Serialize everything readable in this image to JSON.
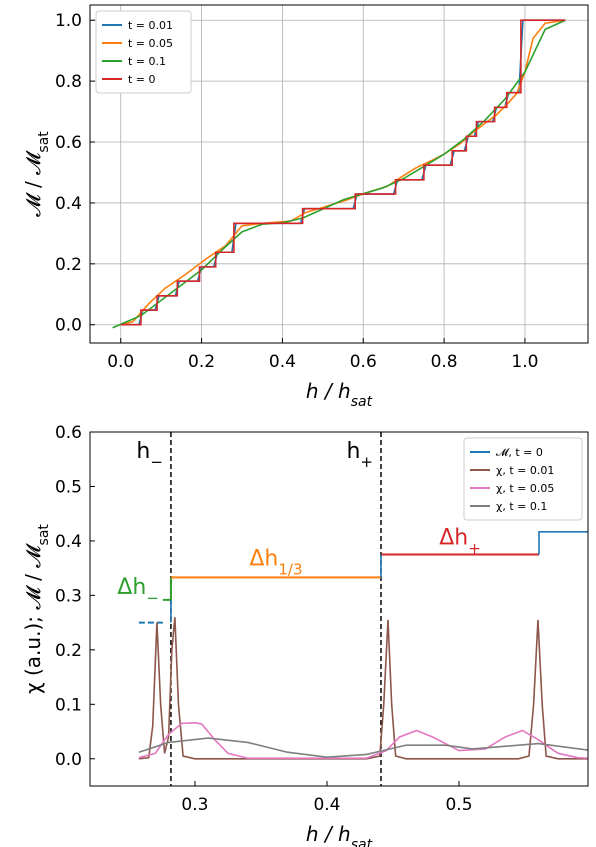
{
  "chart_data": [
    {
      "type": "line",
      "xlabel": {
        "text": "h / h",
        "sub": "sat"
      },
      "ylabel": {
        "text": "𝓜 / 𝓜",
        "sub": "sat"
      },
      "xlim": [
        -0.076,
        1.156
      ],
      "ylim": [
        -0.06,
        1.05
      ],
      "xticks": [
        {
          "value": 0,
          "label": "0.0"
        },
        0.2,
        0.4,
        0.6,
        0.8,
        {
          "value": 1,
          "label": "1.0"
        }
      ],
      "yticks": [
        {
          "value": 0,
          "label": "0.0"
        },
        0.2,
        0.4,
        0.6,
        0.8,
        {
          "value": 1,
          "label": "1.0"
        }
      ],
      "grid": true,
      "legend": "upper left",
      "series": [
        {
          "name": "t = 0.01",
          "color": "#1f77b4",
          "x": [
            0,
            0.045,
            0.055,
            0.085,
            0.095,
            0.135,
            0.145,
            0.19,
            0.2,
            0.23,
            0.24,
            0.275,
            0.285,
            0.445,
            0.455,
            0.575,
            0.585,
            0.675,
            0.685,
            0.745,
            0.755,
            0.815,
            0.825,
            0.85,
            0.86,
            0.875,
            0.885,
            0.92,
            0.93,
            0.95,
            0.96,
            0.985,
            0.995,
            1.1
          ],
          "values": [
            0,
            0,
            0.048,
            0.048,
            0.095,
            0.095,
            0.143,
            0.143,
            0.19,
            0.19,
            0.238,
            0.238,
            0.333,
            0.333,
            0.381,
            0.381,
            0.429,
            0.429,
            0.476,
            0.476,
            0.524,
            0.524,
            0.571,
            0.571,
            0.619,
            0.619,
            0.667,
            0.667,
            0.714,
            0.714,
            0.762,
            0.762,
            1.0,
            1.0
          ]
        },
        {
          "name": "t = 0.05",
          "color": "#ff7f0e",
          "x": [
            0,
            0.03,
            0.07,
            0.11,
            0.16,
            0.21,
            0.26,
            0.3,
            0.35,
            0.42,
            0.46,
            0.5,
            0.56,
            0.6,
            0.66,
            0.7,
            0.73,
            0.77,
            0.8,
            0.84,
            0.87,
            0.9,
            0.93,
            0.96,
            0.98,
            1.0,
            1.02,
            1.05,
            1.1
          ],
          "values": [
            0,
            0.01,
            0.07,
            0.12,
            0.165,
            0.215,
            0.26,
            0.325,
            0.333,
            0.34,
            0.37,
            0.385,
            0.41,
            0.43,
            0.455,
            0.49,
            0.515,
            0.54,
            0.56,
            0.595,
            0.63,
            0.66,
            0.69,
            0.73,
            0.76,
            0.83,
            0.94,
            0.99,
            1.0
          ]
        },
        {
          "name": "t = 0.1",
          "color": "#2ca02c",
          "x": [
            -0.02,
            0.05,
            0.1,
            0.15,
            0.2,
            0.25,
            0.3,
            0.35,
            0.4,
            0.45,
            0.5,
            0.55,
            0.6,
            0.65,
            0.7,
            0.75,
            0.8,
            0.85,
            0.9,
            0.95,
            1.0,
            1.05,
            1.1
          ],
          "values": [
            -0.01,
            0.03,
            0.08,
            0.13,
            0.18,
            0.245,
            0.305,
            0.33,
            0.335,
            0.35,
            0.38,
            0.41,
            0.43,
            0.45,
            0.48,
            0.52,
            0.56,
            0.61,
            0.67,
            0.74,
            0.83,
            0.97,
            1.0
          ]
        },
        {
          "name": "t = 0",
          "color": "#d62728",
          "x": [
            0,
            0.05,
            0.05,
            0.09,
            0.09,
            0.14,
            0.14,
            0.195,
            0.195,
            0.235,
            0.235,
            0.28,
            0.28,
            0.45,
            0.45,
            0.58,
            0.58,
            0.68,
            0.68,
            0.75,
            0.75,
            0.82,
            0.82,
            0.855,
            0.855,
            0.88,
            0.88,
            0.925,
            0.925,
            0.955,
            0.955,
            0.99,
            0.99,
            1.1
          ],
          "values": [
            0,
            0,
            0.048,
            0.048,
            0.095,
            0.095,
            0.143,
            0.143,
            0.19,
            0.19,
            0.238,
            0.238,
            0.333,
            0.333,
            0.381,
            0.381,
            0.429,
            0.429,
            0.476,
            0.476,
            0.524,
            0.524,
            0.571,
            0.571,
            0.619,
            0.619,
            0.667,
            0.667,
            0.714,
            0.714,
            0.762,
            0.762,
            1.0,
            1.0
          ]
        }
      ]
    },
    {
      "type": "line",
      "xlabel": {
        "text": "h / h",
        "sub": "sat"
      },
      "ylabel": {
        "text": "χ (a.u.);   𝓜 / 𝓜",
        "sub": "sat"
      },
      "xlim": [
        0.2205,
        0.5977
      ],
      "ylim": [
        -0.05,
        0.6
      ],
      "xticks": [
        0.3,
        0.4,
        0.5
      ],
      "yticks": [
        {
          "value": 0,
          "label": "0.0"
        },
        0.1,
        0.2,
        0.3,
        0.4,
        0.5,
        0.6
      ],
      "grid": false,
      "legend": "upper right",
      "series": [
        {
          "name": "𝓜, t = 0",
          "color": "#1f77b4",
          "x": [
            0.2818,
            0.2818,
            0.35,
            0.4409,
            0.4409,
            0.5,
            0.5606,
            0.5606,
            0.5977
          ],
          "values": [
            0.25,
            0.2917,
            null,
            0.333,
            0.375,
            null,
            0.375,
            0.4167,
            0.4167
          ]
        },
        {
          "name": "χ, t = 0.01",
          "color": "#8c564b",
          "x": [
            0.2575,
            0.265,
            0.268,
            0.2712,
            0.274,
            0.277,
            0.28,
            0.2825,
            0.2848,
            0.2875,
            0.291,
            0.3,
            0.43,
            0.44,
            0.443,
            0.4462,
            0.449,
            0.452,
            0.46,
            0.545,
            0.553,
            0.5565,
            0.5598,
            0.563,
            0.566,
            0.575,
            0.5977
          ],
          "values": [
            0,
            0.002,
            0.06,
            0.25,
            0.1,
            0.01,
            0.04,
            0.2,
            0.26,
            0.1,
            0.005,
            0,
            0,
            0.005,
            0.1,
            0.255,
            0.1,
            0.005,
            0,
            0,
            0.005,
            0.1,
            0.255,
            0.1,
            0.005,
            0,
            0
          ]
        },
        {
          "name": "χ, t = 0.05",
          "color": "#e377c2",
          "x": [
            0.2575,
            0.27,
            0.28,
            0.29,
            0.3,
            0.305,
            0.315,
            0.325,
            0.34,
            0.43,
            0.445,
            0.455,
            0.468,
            0.48,
            0.5,
            0.52,
            0.535,
            0.548,
            0.56,
            0.575,
            0.59,
            0.5977
          ],
          "values": [
            0.002,
            0.01,
            0.045,
            0.065,
            0.066,
            0.064,
            0.035,
            0.01,
            0.001,
            0.001,
            0.015,
            0.04,
            0.052,
            0.04,
            0.015,
            0.018,
            0.04,
            0.052,
            0.035,
            0.01,
            0.002,
            0.001
          ]
        },
        {
          "name": "χ, t = 0.1",
          "color": "#7f7f7f",
          "x": [
            0.2575,
            0.28,
            0.31,
            0.34,
            0.37,
            0.4,
            0.43,
            0.46,
            0.49,
            0.51,
            0.53,
            0.56,
            0.5977
          ],
          "values": [
            0.012,
            0.03,
            0.038,
            0.03,
            0.012,
            0.003,
            0.008,
            0.025,
            0.025,
            0.018,
            0.022,
            0.028,
            0.016
          ]
        }
      ],
      "vlines": [
        {
          "x": 0.2818,
          "label": {
            "text": "h",
            "sub": "−"
          }
        },
        {
          "x": 0.4409,
          "label": {
            "text": "h",
            "sub": "+"
          }
        }
      ],
      "segments": [
        {
          "color": "#1f77b4",
          "dashed": true,
          "x": [
            0.2575,
            0.2757
          ],
          "values": [
            0.25,
            0.25
          ]
        },
        {
          "color": "#2ca02c",
          "label": {
            "text": "Δh",
            "sub": "−"
          },
          "x": [
            0.2757,
            0.2818,
            0.2818
          ],
          "values": [
            0.2917,
            0.2917,
            0.333
          ]
        },
        {
          "color": "#ff7f0e",
          "label": {
            "text": "Δh",
            "sub": "1/3"
          },
          "x": [
            0.2818,
            0.4409
          ],
          "values": [
            0.333,
            0.333
          ]
        },
        {
          "color": "#d62728",
          "label": {
            "text": "Δh",
            "sub": "+"
          },
          "x": [
            0.4409,
            0.5606
          ],
          "values": [
            0.375,
            0.375
          ]
        }
      ]
    }
  ]
}
